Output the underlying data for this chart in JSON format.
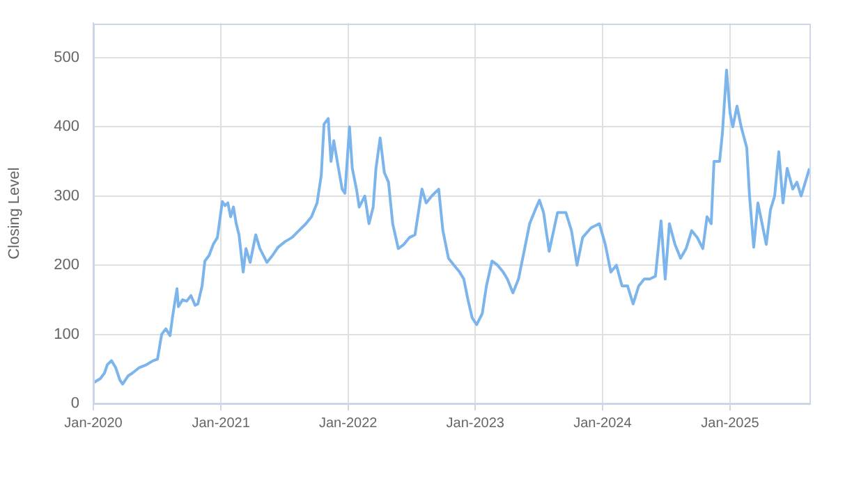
{
  "chart_data": {
    "type": "line",
    "ylabel": "Closing Level",
    "x": [
      "2020-01-01",
      "2020-01-21",
      "2020-02-02",
      "2020-02-10",
      "2020-02-22",
      "2020-03-05",
      "2020-03-17",
      "2020-03-25",
      "2020-04-10",
      "2020-04-22",
      "2020-05-12",
      "2020-06-01",
      "2020-06-21",
      "2020-07-03",
      "2020-07-15",
      "2020-07-27",
      "2020-08-08",
      "2020-08-16",
      "2020-08-28",
      "2020-09-01",
      "2020-09-13",
      "2020-09-25",
      "2020-10-07",
      "2020-10-19",
      "2020-10-27",
      "2020-11-08",
      "2020-11-16",
      "2020-11-28",
      "2020-12-10",
      "2020-12-22",
      "2021-01-05",
      "2021-01-13",
      "2021-01-21",
      "2021-01-29",
      "2021-02-06",
      "2021-02-14",
      "2021-02-22",
      "2021-03-06",
      "2021-03-14",
      "2021-03-26",
      "2021-04-11",
      "2021-04-23",
      "2021-05-13",
      "2021-05-29",
      "2021-06-14",
      "2021-07-04",
      "2021-07-24",
      "2021-08-13",
      "2021-09-02",
      "2021-09-18",
      "2021-10-04",
      "2021-10-16",
      "2021-10-24",
      "2021-11-05",
      "2021-11-13",
      "2021-11-21",
      "2021-12-03",
      "2021-12-15",
      "2021-12-23",
      "2022-01-05",
      "2022-01-13",
      "2022-01-25",
      "2022-02-02",
      "2022-02-18",
      "2022-03-02",
      "2022-03-14",
      "2022-03-22",
      "2022-04-03",
      "2022-04-15",
      "2022-04-27",
      "2022-05-09",
      "2022-05-25",
      "2022-06-10",
      "2022-06-26",
      "2022-07-12",
      "2022-08-01",
      "2022-08-13",
      "2022-08-29",
      "2022-09-18",
      "2022-09-30",
      "2022-10-16",
      "2022-11-01",
      "2022-11-17",
      "2022-11-29",
      "2022-12-11",
      "2022-12-23",
      "2023-01-05",
      "2023-01-21",
      "2023-02-02",
      "2023-02-18",
      "2023-03-06",
      "2023-03-22",
      "2023-04-03",
      "2023-04-19",
      "2023-05-05",
      "2023-05-21",
      "2023-06-06",
      "2023-06-22",
      "2023-07-04",
      "2023-07-16",
      "2023-08-01",
      "2023-08-25",
      "2023-09-18",
      "2023-10-04",
      "2023-10-20",
      "2023-11-05",
      "2023-11-29",
      "2023-12-23",
      "2024-01-09",
      "2024-01-25",
      "2024-02-10",
      "2024-02-26",
      "2024-03-13",
      "2024-03-29",
      "2024-04-14",
      "2024-04-30",
      "2024-05-16",
      "2024-06-01",
      "2024-06-17",
      "2024-06-29",
      "2024-07-11",
      "2024-07-27",
      "2024-08-12",
      "2024-08-28",
      "2024-09-13",
      "2024-09-29",
      "2024-10-15",
      "2024-10-27",
      "2024-11-08",
      "2024-11-16",
      "2024-12-02",
      "2024-12-10",
      "2024-12-22",
      "2025-01-01",
      "2025-01-09",
      "2025-01-21",
      "2025-02-02",
      "2025-02-18",
      "2025-02-26",
      "2025-03-10",
      "2025-03-22",
      "2025-04-03",
      "2025-04-15",
      "2025-04-27",
      "2025-05-09",
      "2025-05-21",
      "2025-06-02",
      "2025-06-14",
      "2025-06-30",
      "2025-07-12",
      "2025-07-24",
      "2025-08-05",
      "2025-08-17"
    ],
    "series": [
      {
        "color": "#7cb5ec",
        "values": [
          30,
          36,
          44,
          56,
          62,
          52,
          34,
          28,
          40,
          44,
          52,
          56,
          62,
          64,
          100,
          108,
          98,
          128,
          166,
          140,
          150,
          148,
          156,
          142,
          144,
          170,
          206,
          214,
          230,
          240,
          292,
          286,
          290,
          270,
          284,
          260,
          244,
          190,
          224,
          204,
          244,
          224,
          204,
          214,
          226,
          234,
          240,
          250,
          260,
          270,
          290,
          330,
          404,
          412,
          350,
          380,
          344,
          310,
          304,
          400,
          340,
          310,
          284,
          300,
          260,
          284,
          340,
          384,
          334,
          320,
          260,
          224,
          230,
          240,
          244,
          310,
          290,
          300,
          310,
          250,
          210,
          200,
          190,
          180,
          150,
          124,
          114,
          130,
          170,
          206,
          200,
          190,
          180,
          160,
          180,
          220,
          260,
          280,
          294,
          276,
          220,
          276,
          276,
          250,
          200,
          240,
          254,
          260,
          230,
          190,
          200,
          170,
          170,
          144,
          170,
          180,
          180,
          184,
          264,
          180,
          260,
          230,
          210,
          224,
          250,
          240,
          224,
          270,
          260,
          350,
          350,
          390,
          482,
          420,
          400,
          430,
          400,
          370,
          300,
          226,
          290,
          260,
          230,
          280,
          300,
          364,
          290,
          340,
          310,
          320,
          300,
          320,
          340
        ]
      }
    ],
    "xlim": [
      "2020-01-01",
      "2025-08-17"
    ],
    "xticks": [
      {
        "value": "2020-01-01",
        "label": "Jan-2020"
      },
      {
        "value": "2021-01-01",
        "label": "Jan-2021"
      },
      {
        "value": "2022-01-01",
        "label": "Jan-2022"
      },
      {
        "value": "2023-01-01",
        "label": "Jan-2023"
      },
      {
        "value": "2024-01-01",
        "label": "Jan-2024"
      },
      {
        "value": "2025-01-01",
        "label": "Jan-2025"
      }
    ],
    "ylim": [
      0,
      550
    ],
    "yticks": [
      0,
      100,
      200,
      300,
      400,
      500
    ],
    "grid": true,
    "legend": false,
    "marker": "none",
    "line_style": "solid"
  }
}
